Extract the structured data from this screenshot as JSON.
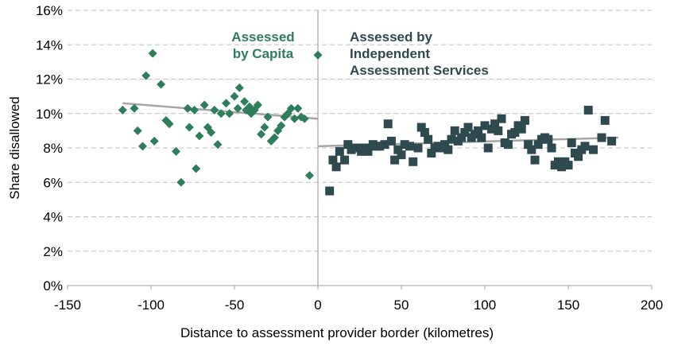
{
  "chart_data": {
    "type": "scatter",
    "xlabel": "Distance to assessment provider border (kilometres)",
    "ylabel": "Share disallowed",
    "xlim": [
      -150,
      200
    ],
    "ylim": [
      0,
      16
    ],
    "x_ticks": [
      "-150",
      "-100",
      "-50",
      "0",
      "50",
      "100",
      "150",
      "200"
    ],
    "y_ticks": [
      "0%",
      "2%",
      "4%",
      "6%",
      "8%",
      "10%",
      "12%",
      "14%",
      "16%"
    ],
    "grid": "horizontal dashed",
    "annotations": [
      {
        "lines": [
          "Assessed",
          "by Capita"
        ],
        "color": "#2e7d5b"
      },
      {
        "lines": [
          "Assessed by",
          "Independent",
          "Assessment Services"
        ],
        "color": "#2f4a4f"
      }
    ],
    "colors": {
      "capita": "#2e7d5b",
      "ias": "#2f4a4f",
      "trend": "#a6a6a6",
      "grid": "#bfbfbf",
      "divider": "#a6a6a6"
    },
    "series": [
      {
        "marker": "diamond",
        "color": "#2e7d5b",
        "points": [
          [
            -117,
            10.2
          ],
          [
            -110,
            10.3
          ],
          [
            -108,
            9.0
          ],
          [
            -105,
            8.1
          ],
          [
            -103,
            12.2
          ],
          [
            -99,
            13.5
          ],
          [
            -98,
            8.4
          ],
          [
            -94,
            11.7
          ],
          [
            -91,
            9.6
          ],
          [
            -89,
            9.4
          ],
          [
            -85,
            7.8
          ],
          [
            -82,
            6.0
          ],
          [
            -78,
            10.3
          ],
          [
            -77,
            9.2
          ],
          [
            -74,
            10.2
          ],
          [
            -73,
            6.8
          ],
          [
            -71,
            8.7
          ],
          [
            -68,
            10.5
          ],
          [
            -66,
            9.2
          ],
          [
            -64,
            8.9
          ],
          [
            -62,
            10.2
          ],
          [
            -60,
            8.2
          ],
          [
            -58,
            10.0
          ],
          [
            -55,
            10.6
          ],
          [
            -53,
            10.0
          ],
          [
            -50,
            11.0
          ],
          [
            -48,
            10.3
          ],
          [
            -47,
            11.5
          ],
          [
            -44,
            10.7
          ],
          [
            -43,
            10.2
          ],
          [
            -41,
            10.4
          ],
          [
            -40,
            10.0
          ],
          [
            -38,
            10.2
          ],
          [
            -36,
            10.5
          ],
          [
            -34,
            8.8
          ],
          [
            -32,
            9.2
          ],
          [
            -30,
            9.8
          ],
          [
            -28,
            8.4
          ],
          [
            -26,
            8.6
          ],
          [
            -24,
            9.0
          ],
          [
            -22,
            9.3
          ],
          [
            -20,
            9.8
          ],
          [
            -18,
            10.0
          ],
          [
            -16,
            10.3
          ],
          [
            -14,
            9.7
          ],
          [
            -12,
            10.3
          ],
          [
            -10,
            9.8
          ],
          [
            -8,
            9.7
          ],
          [
            -5,
            6.4
          ],
          [
            0,
            13.4
          ]
        ]
      },
      {
        "marker": "square",
        "color": "#2f4a4f",
        "points": [
          [
            7,
            5.5
          ],
          [
            9,
            7.3
          ],
          [
            11,
            6.9
          ],
          [
            13,
            7.8
          ],
          [
            16,
            7.3
          ],
          [
            18,
            8.2
          ],
          [
            20,
            7.9
          ],
          [
            22,
            8.0
          ],
          [
            24,
            8.0
          ],
          [
            26,
            7.8
          ],
          [
            28,
            8.0
          ],
          [
            30,
            7.8
          ],
          [
            33,
            8.2
          ],
          [
            35,
            8.1
          ],
          [
            37,
            8.1
          ],
          [
            40,
            8.2
          ],
          [
            42,
            9.4
          ],
          [
            44,
            8.4
          ],
          [
            46,
            7.3
          ],
          [
            48,
            7.9
          ],
          [
            50,
            7.6
          ],
          [
            52,
            8.2
          ],
          [
            55,
            8.1
          ],
          [
            57,
            7.2
          ],
          [
            60,
            8.0
          ],
          [
            62,
            9.2
          ],
          [
            64,
            8.9
          ],
          [
            66,
            8.5
          ],
          [
            68,
            7.7
          ],
          [
            70,
            8.0
          ],
          [
            72,
            8.1
          ],
          [
            74,
            8.0
          ],
          [
            76,
            8.2
          ],
          [
            78,
            7.9
          ],
          [
            80,
            8.5
          ],
          [
            82,
            9.0
          ],
          [
            84,
            8.4
          ],
          [
            86,
            8.6
          ],
          [
            88,
            8.9
          ],
          [
            90,
            9.2
          ],
          [
            92,
            8.6
          ],
          [
            94,
            8.8
          ],
          [
            96,
            9.0
          ],
          [
            98,
            8.6
          ],
          [
            100,
            9.3
          ],
          [
            102,
            8.0
          ],
          [
            104,
            9.1
          ],
          [
            106,
            9.4
          ],
          [
            108,
            9.0
          ],
          [
            110,
            9.7
          ],
          [
            112,
            8.3
          ],
          [
            114,
            8.2
          ],
          [
            116,
            8.8
          ],
          [
            118,
            8.9
          ],
          [
            120,
            9.3
          ],
          [
            122,
            9.1
          ],
          [
            124,
            9.6
          ],
          [
            126,
            8.2
          ],
          [
            128,
            7.9
          ],
          [
            130,
            7.3
          ],
          [
            132,
            8.2
          ],
          [
            134,
            8.5
          ],
          [
            136,
            8.6
          ],
          [
            138,
            8.5
          ],
          [
            140,
            8.0
          ],
          [
            142,
            7.0
          ],
          [
            144,
            7.2
          ],
          [
            146,
            6.9
          ],
          [
            148,
            7.2
          ],
          [
            150,
            7.0
          ],
          [
            152,
            8.3
          ],
          [
            154,
            7.7
          ],
          [
            156,
            7.5
          ],
          [
            158,
            7.9
          ],
          [
            160,
            8.1
          ],
          [
            162,
            10.2
          ],
          [
            165,
            7.9
          ],
          [
            170,
            8.6
          ],
          [
            172,
            9.6
          ],
          [
            176,
            8.4
          ]
        ]
      }
    ],
    "trendlines": [
      {
        "x": [
          -117,
          0
        ],
        "y": [
          10.6,
          9.7
        ]
      },
      {
        "x": [
          0,
          180
        ],
        "y": [
          8.1,
          8.6
        ]
      }
    ]
  }
}
